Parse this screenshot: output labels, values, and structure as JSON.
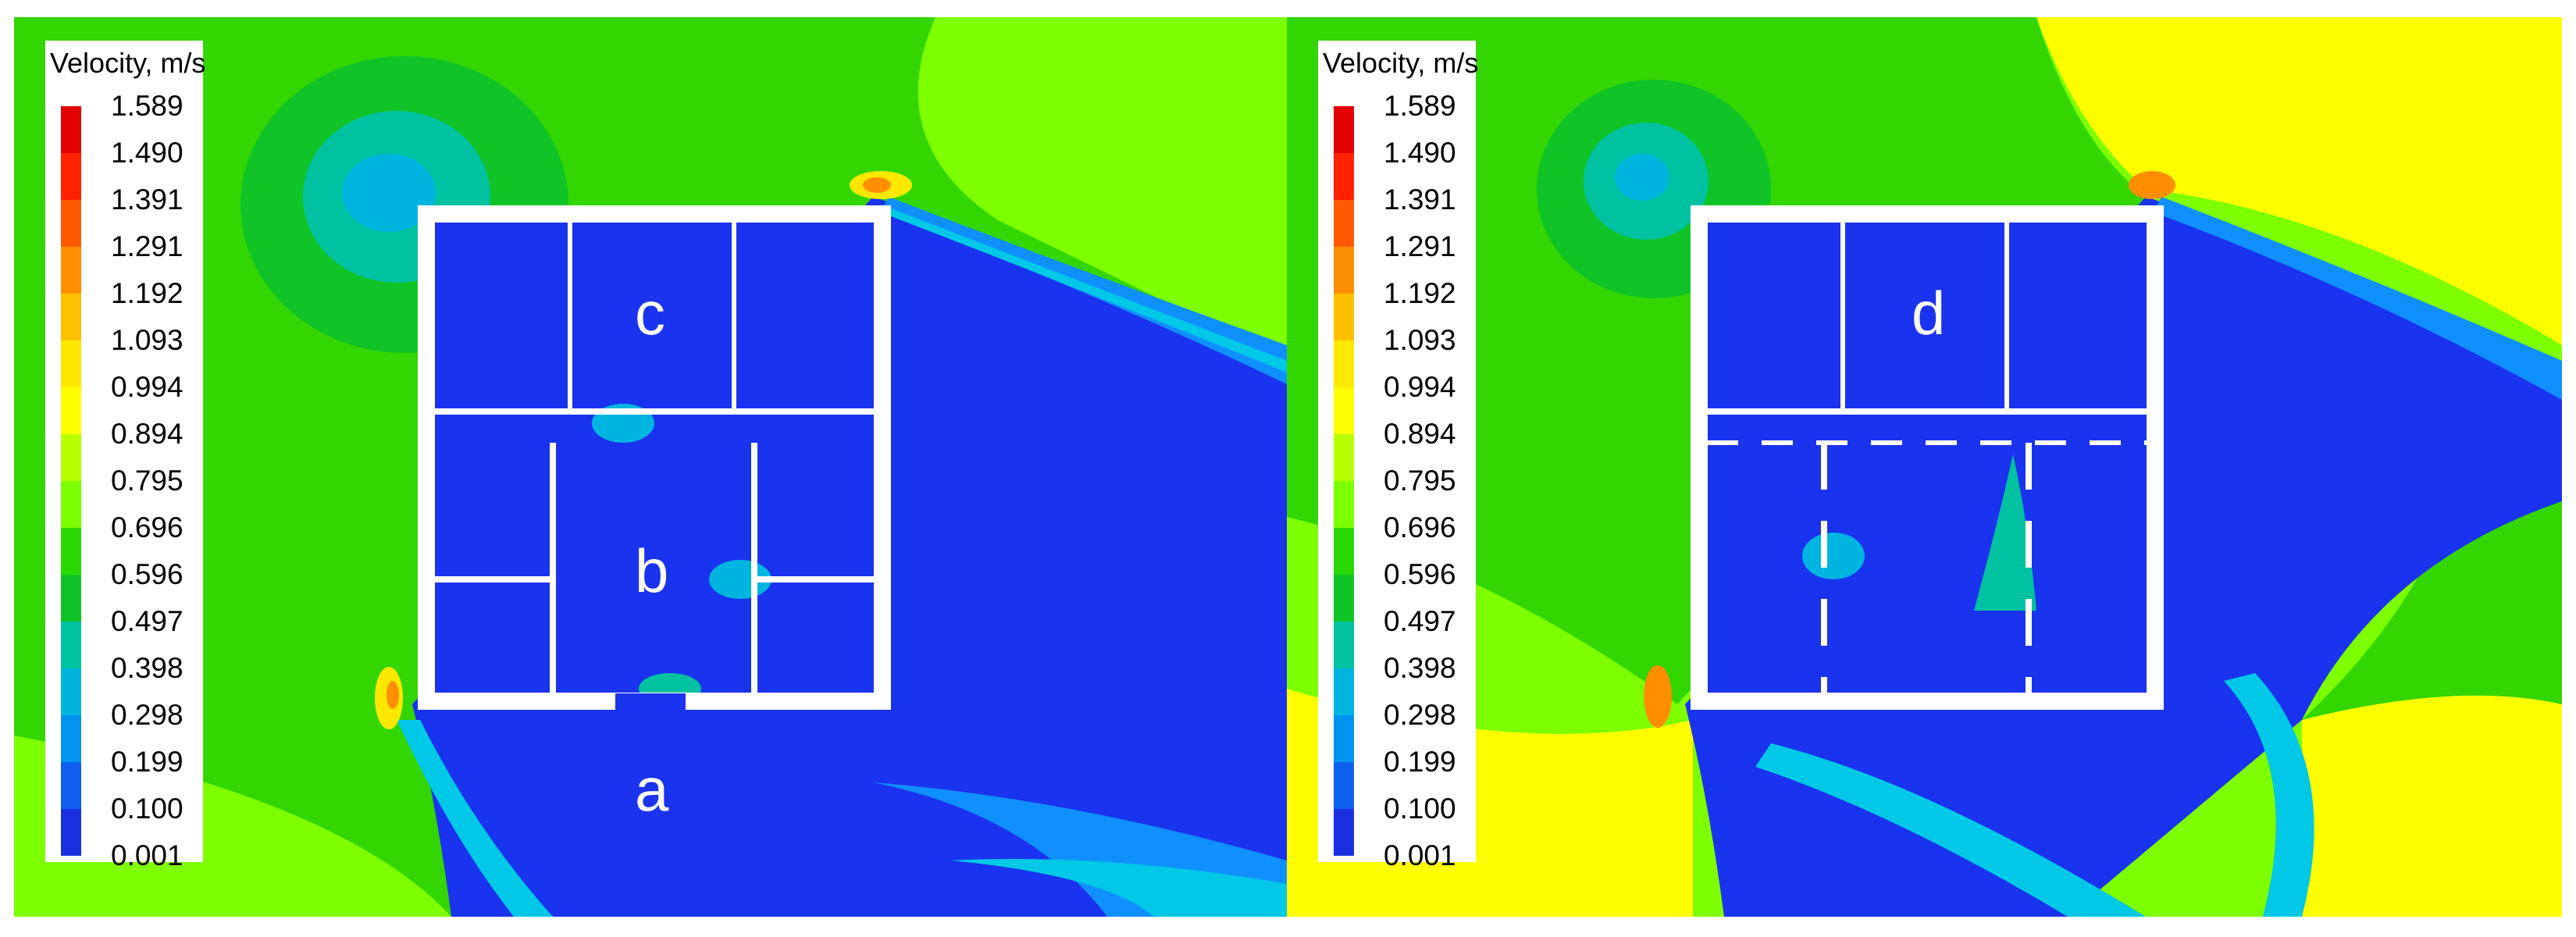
{
  "panels": [
    {
      "legend_title": "Velocity,  m/s",
      "room_labels": {
        "c": "c",
        "b": "b",
        "a": "a"
      }
    },
    {
      "legend_title": "Velocity,  m/s",
      "room_labels": {
        "d": "d"
      }
    }
  ],
  "legend_ticks": [
    "1.589",
    "1.490",
    "1.391",
    "1.291",
    "1.192",
    "1.093",
    "0.994",
    "0.894",
    "0.795",
    "0.696",
    "0.596",
    "0.497",
    "0.398",
    "0.298",
    "0.199",
    "0.100",
    "0.001"
  ],
  "legend_colors": [
    "#e30000",
    "#ff2200",
    "#ff5a00",
    "#ff8e00",
    "#ffc000",
    "#ffe800",
    "#ffff00",
    "#b8ff00",
    "#7cff00",
    "#28d800",
    "#10c428",
    "#00c2a0",
    "#00b4e0",
    "#0094f0",
    "#1060f0",
    "#1a30e0",
    "#1010c8"
  ],
  "colors": {
    "blue": "#1a33ee",
    "green": "#33d600",
    "lime": "#7dff00",
    "yellow": "#ffff00",
    "cyan": "#00c8e6",
    "wall": "#ffffff"
  }
}
